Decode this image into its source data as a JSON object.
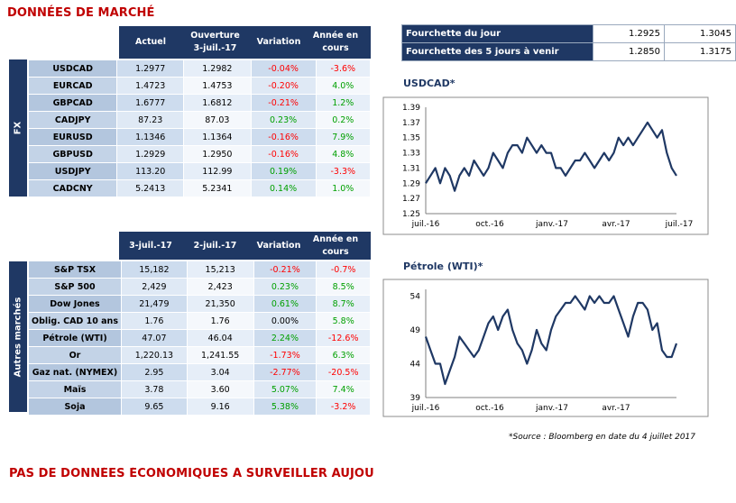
{
  "page_title": "DONNÉES DE MARCHÉ",
  "footer_title": "PAS DE DONNÉES ÉCONOMIQUES À SURVEILLER AUJOURD'HUI",
  "fx": {
    "group_label": "FX",
    "headers": [
      "Actuel",
      "Ouverture\n3-juil.-17",
      "Variation",
      "Année en\ncours"
    ],
    "rows": [
      {
        "name": "USDCAD",
        "a": "1.2977",
        "b": "1.2982",
        "var": "-0.04%",
        "ytd": "-3.6%"
      },
      {
        "name": "EURCAD",
        "a": "1.4723",
        "b": "1.4753",
        "var": "-0.20%",
        "ytd": "4.0%"
      },
      {
        "name": "GBPCAD",
        "a": "1.6777",
        "b": "1.6812",
        "var": "-0.21%",
        "ytd": "1.2%"
      },
      {
        "name": "CADJPY",
        "a": "87.23",
        "b": "87.03",
        "var": "0.23%",
        "ytd": "0.2%"
      },
      {
        "name": "EURUSD",
        "a": "1.1346",
        "b": "1.1364",
        "var": "-0.16%",
        "ytd": "7.9%"
      },
      {
        "name": "GBPUSD",
        "a": "1.2929",
        "b": "1.2950",
        "var": "-0.16%",
        "ytd": "4.8%"
      },
      {
        "name": "USDJPY",
        "a": "113.20",
        "b": "112.99",
        "var": "0.19%",
        "ytd": "-3.3%"
      },
      {
        "name": "CADCNY",
        "a": "5.2413",
        "b": "5.2341",
        "var": "0.14%",
        "ytd": "1.0%"
      }
    ]
  },
  "markets": {
    "group_label": "Autres marchés",
    "headers": [
      "3-juil.-17",
      "2-juil.-17",
      "Variation",
      "Année en\ncours"
    ],
    "rows": [
      {
        "name": "S&P TSX",
        "a": "15,182",
        "b": "15,213",
        "var": "-0.21%",
        "ytd": "-0.7%"
      },
      {
        "name": "S&P 500",
        "a": "2,429",
        "b": "2,423",
        "var": "0.23%",
        "ytd": "8.5%"
      },
      {
        "name": "Dow Jones",
        "a": "21,479",
        "b": "21,350",
        "var": "0.61%",
        "ytd": "8.7%"
      },
      {
        "name": "Oblig. CAD 10 ans",
        "a": "1.76",
        "b": "1.76",
        "var": "0.00%",
        "ytd": "5.8%"
      },
      {
        "name": "Pétrole (WTI)",
        "a": "47.07",
        "b": "46.04",
        "var": "2.24%",
        "ytd": "-12.6%"
      },
      {
        "name": "Or",
        "a": "1,220.13",
        "b": "1,241.55",
        "var": "-1.73%",
        "ytd": "6.3%"
      },
      {
        "name": "Gaz nat. (NYMEX)",
        "a": "2.95",
        "b": "3.04",
        "var": "-2.77%",
        "ytd": "-20.5%"
      },
      {
        "name": "Maïs",
        "a": "3.78",
        "b": "3.60",
        "var": "5.07%",
        "ytd": "7.4%"
      },
      {
        "name": "Soja",
        "a": "9.65",
        "b": "9.16",
        "var": "5.38%",
        "ytd": "-3.2%"
      }
    ]
  },
  "ranges": [
    {
      "label": "Fourchette du jour",
      "low": "1.2925",
      "high": "1.3045"
    },
    {
      "label": "Fourchette des 5 jours à venir",
      "low": "1.2850",
      "high": "1.3175"
    }
  ],
  "colors": {
    "navy": "#1f3864",
    "negative": "#ff0000",
    "positive": "#00a000",
    "title": "#c00000"
  },
  "chart_data": [
    {
      "type": "line",
      "title": "USDCAD*",
      "x_tick_labels": [
        "juil.-16",
        "oct.-16",
        "janv.-17",
        "avr.-17",
        "juil.-17"
      ],
      "y_ticks": [
        1.25,
        1.27,
        1.29,
        1.31,
        1.33,
        1.35,
        1.37,
        1.39
      ],
      "ylim": [
        1.25,
        1.39
      ],
      "xlim": [
        0,
        52
      ],
      "grid": false,
      "series": [
        {
          "x": [
            0,
            1,
            2,
            3,
            4,
            5,
            6,
            7,
            8,
            9,
            10,
            11,
            12,
            13,
            14,
            15,
            16,
            17,
            18,
            19,
            20,
            21,
            22,
            23,
            24,
            25,
            26,
            27,
            28,
            29,
            30,
            31,
            32,
            33,
            34,
            35,
            36,
            37,
            38,
            39,
            40,
            41,
            42,
            43,
            44,
            45,
            46,
            47,
            48,
            49,
            50,
            51,
            52
          ],
          "y": [
            1.29,
            1.3,
            1.31,
            1.29,
            1.31,
            1.3,
            1.28,
            1.3,
            1.31,
            1.3,
            1.32,
            1.31,
            1.3,
            1.31,
            1.33,
            1.32,
            1.31,
            1.33,
            1.34,
            1.34,
            1.33,
            1.35,
            1.34,
            1.33,
            1.34,
            1.33,
            1.33,
            1.31,
            1.31,
            1.3,
            1.31,
            1.32,
            1.32,
            1.33,
            1.32,
            1.31,
            1.32,
            1.33,
            1.32,
            1.33,
            1.35,
            1.34,
            1.35,
            1.34,
            1.35,
            1.36,
            1.37,
            1.36,
            1.35,
            1.36,
            1.33,
            1.31,
            1.3
          ]
        }
      ]
    },
    {
      "type": "line",
      "title": "Pétrole (WTI)*",
      "x_tick_labels": [
        "juil.-16",
        "oct.-16",
        "janv.-17",
        "avr.-17"
      ],
      "y_ticks": [
        39,
        44,
        49,
        54
      ],
      "ylim": [
        39,
        55
      ],
      "xlim": [
        0,
        52
      ],
      "grid": false,
      "series": [
        {
          "x": [
            0,
            1,
            2,
            3,
            4,
            5,
            6,
            7,
            8,
            9,
            10,
            11,
            12,
            13,
            14,
            15,
            16,
            17,
            18,
            19,
            20,
            21,
            22,
            23,
            24,
            25,
            26,
            27,
            28,
            29,
            30,
            31,
            32,
            33,
            34,
            35,
            36,
            37,
            38,
            39,
            40,
            41,
            42,
            43,
            44,
            45,
            46,
            47,
            48,
            49,
            50,
            51,
            52
          ],
          "y": [
            48,
            46,
            44,
            44,
            41,
            43,
            45,
            48,
            47,
            46,
            45,
            46,
            48,
            50,
            51,
            49,
            51,
            52,
            49,
            47,
            46,
            44,
            46,
            49,
            47,
            46,
            49,
            51,
            52,
            53,
            53,
            54,
            53,
            52,
            54,
            53,
            54,
            53,
            53,
            54,
            52,
            50,
            48,
            51,
            53,
            53,
            52,
            49,
            50,
            46,
            45,
            45,
            47
          ]
        }
      ]
    }
  ],
  "source_note": "*Source : Bloomberg en date du   4 juillet 2017"
}
